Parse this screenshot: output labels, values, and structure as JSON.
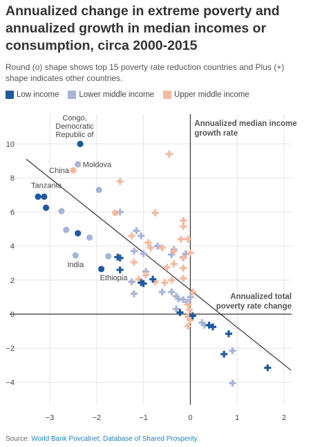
{
  "title": "Annualized change in extreme poverty and annualized growth in median incomes or consumption, circa 2000-2015",
  "subtitle": "Round (o) shape shows top 15 poverty rate reduction countries and Plus (+) shape indicates other countries.",
  "legend": {
    "items": [
      {
        "label": "Low income",
        "color": "#1f5aa0"
      },
      {
        "label": "Lower middle income",
        "color": "#aab4d9"
      },
      {
        "label": "Upper middle income",
        "color": "#f5b9a0"
      }
    ]
  },
  "source": {
    "prefix": "Source: ",
    "text": "World Bank Povcalnet; Database of Shared Prosperity"
  },
  "chart_data": {
    "type": "scatter",
    "title": "Annualized change in extreme poverty and annualized growth in median incomes or consumption, circa 2000-2015",
    "xlabel": "Annualized total poverty rate change",
    "ylabel": "Annualized median income growth rate",
    "xlim": [
      -3.5,
      2.2
    ],
    "ylim": [
      -4.6,
      11
    ],
    "x_ticks": [
      -3,
      -2,
      -1,
      0,
      1,
      2
    ],
    "y_ticks": [
      -4,
      -2,
      0,
      2,
      4,
      6,
      8,
      10
    ],
    "grid": true,
    "legend_position": "top-left",
    "trend_line": {
      "x": [
        -3.5,
        2.15
      ],
      "y": [
        9.1,
        -3.3
      ]
    },
    "series": [
      {
        "name": "Low income",
        "color": "#1f5aa0",
        "circles": [
          {
            "x": -2.35,
            "y": 10.0,
            "label": "Congo, Democratic Republic of"
          },
          {
            "x": -3.25,
            "y": 6.9,
            "label": "Tanzania"
          },
          {
            "x": -3.12,
            "y": 6.9
          },
          {
            "x": -3.08,
            "y": 6.25
          },
          {
            "x": -2.4,
            "y": 4.75
          },
          {
            "x": -1.9,
            "y": 2.65,
            "label": "Ethiopia"
          }
        ],
        "plus": [
          {
            "x": -1.55,
            "y": 3.35
          },
          {
            "x": -1.5,
            "y": 3.3
          },
          {
            "x": -1.5,
            "y": 2.6
          },
          {
            "x": -1.05,
            "y": 1.85
          },
          {
            "x": -1.0,
            "y": 1.8
          },
          {
            "x": -0.8,
            "y": 2.05
          },
          {
            "x": -0.22,
            "y": 0.1
          },
          {
            "x": 0.05,
            "y": -0.1
          },
          {
            "x": 0.4,
            "y": -0.65
          },
          {
            "x": 0.48,
            "y": -0.75
          },
          {
            "x": 0.72,
            "y": -2.35
          },
          {
            "x": 0.82,
            "y": -1.15
          },
          {
            "x": 1.65,
            "y": -3.15
          }
        ]
      },
      {
        "name": "Lower middle income",
        "color": "#aab4d9",
        "circles": [
          {
            "x": -2.4,
            "y": 8.8,
            "label": "Moldova"
          },
          {
            "x": -1.95,
            "y": 7.3
          },
          {
            "x": -2.75,
            "y": 6.05
          },
          {
            "x": -2.65,
            "y": 4.95
          },
          {
            "x": -2.15,
            "y": 4.5
          },
          {
            "x": -2.45,
            "y": 3.45,
            "label": "India"
          },
          {
            "x": -1.75,
            "y": 3.4
          }
        ],
        "plus": [
          {
            "x": -1.5,
            "y": 6.0
          },
          {
            "x": -1.15,
            "y": 4.9
          },
          {
            "x": -1.05,
            "y": 4.6
          },
          {
            "x": -1.2,
            "y": 3.7
          },
          {
            "x": -1.0,
            "y": 3.55
          },
          {
            "x": -0.7,
            "y": 4.0
          },
          {
            "x": -0.4,
            "y": 3.5
          },
          {
            "x": -0.35,
            "y": 3.8
          },
          {
            "x": -0.15,
            "y": 3.35
          },
          {
            "x": -0.1,
            "y": 3.55
          },
          {
            "x": -1.25,
            "y": 1.9
          },
          {
            "x": -1.2,
            "y": 1.2
          },
          {
            "x": -0.95,
            "y": 2.5
          },
          {
            "x": -0.6,
            "y": 1.3
          },
          {
            "x": -0.4,
            "y": 1.3
          },
          {
            "x": -0.3,
            "y": 1.05
          },
          {
            "x": -0.25,
            "y": 0.9
          },
          {
            "x": -0.15,
            "y": 0.85
          },
          {
            "x": -0.05,
            "y": 0.7
          },
          {
            "x": 0.0,
            "y": 1.0
          },
          {
            "x": -0.3,
            "y": 0.3
          },
          {
            "x": 0.25,
            "y": -0.5
          },
          {
            "x": 0.3,
            "y": -0.65
          },
          {
            "x": 0.9,
            "y": -2.15
          },
          {
            "x": 0.9,
            "y": -4.05
          }
        ]
      },
      {
        "name": "Upper middle income",
        "color": "#f5b9a0",
        "circles": [
          {
            "x": -2.5,
            "y": 8.45,
            "label": "China"
          },
          {
            "x": -1.6,
            "y": 5.95
          }
        ],
        "plus": [
          {
            "x": -0.45,
            "y": 9.4
          },
          {
            "x": -1.5,
            "y": 7.8
          },
          {
            "x": -0.75,
            "y": 5.95
          },
          {
            "x": -0.15,
            "y": 5.5
          },
          {
            "x": -0.15,
            "y": 5.15
          },
          {
            "x": -0.2,
            "y": 4.4
          },
          {
            "x": -0.05,
            "y": 4.4
          },
          {
            "x": -1.25,
            "y": 4.6
          },
          {
            "x": -0.9,
            "y": 4.2
          },
          {
            "x": -0.85,
            "y": 3.9
          },
          {
            "x": -0.6,
            "y": 3.9
          },
          {
            "x": -0.35,
            "y": 3.7
          },
          {
            "x": -0.15,
            "y": 3.3
          },
          {
            "x": 0.0,
            "y": 3.6
          },
          {
            "x": -1.2,
            "y": 3.05
          },
          {
            "x": -0.5,
            "y": 2.75
          },
          {
            "x": -0.35,
            "y": 2.95
          },
          {
            "x": -0.15,
            "y": 2.7
          },
          {
            "x": -1.1,
            "y": 2.05
          },
          {
            "x": -0.95,
            "y": 2.3
          },
          {
            "x": -0.75,
            "y": 1.9
          },
          {
            "x": -0.55,
            "y": 1.85
          },
          {
            "x": -0.4,
            "y": 2.0
          },
          {
            "x": -0.15,
            "y": 2.1
          },
          {
            "x": 0.05,
            "y": 1.3
          },
          {
            "x": -0.05,
            "y": 0.55
          },
          {
            "x": -0.02,
            "y": 0.25
          },
          {
            "x": -0.05,
            "y": -0.15
          },
          {
            "x": 0.0,
            "y": -0.35
          },
          {
            "x": -0.05,
            "y": -0.7
          }
        ]
      }
    ]
  }
}
